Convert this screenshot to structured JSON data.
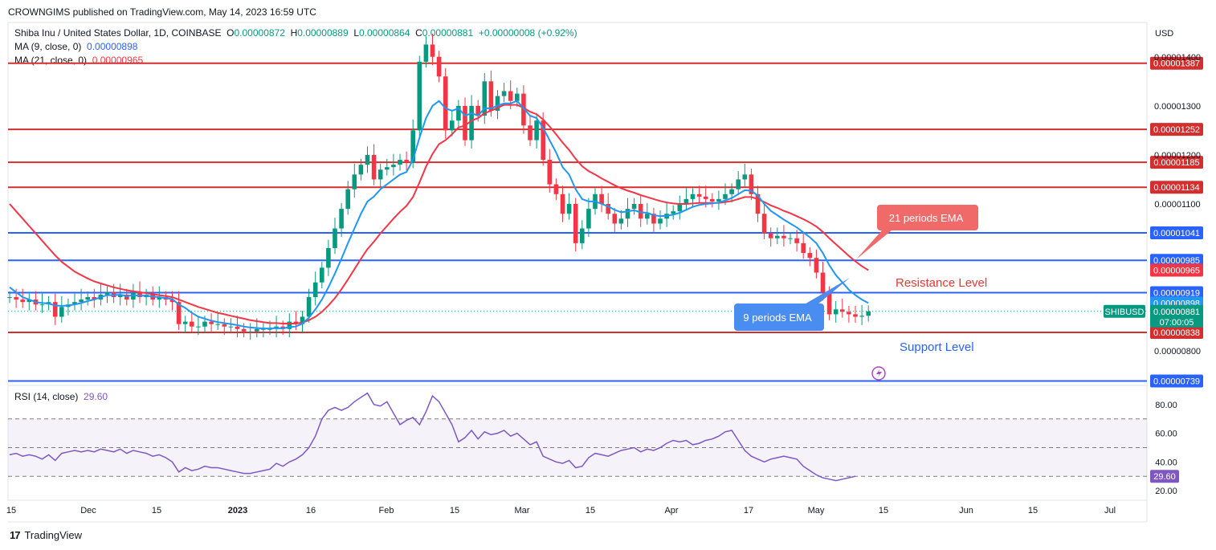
{
  "publisher": "CROWNGIMS published on TradingView.com, May 14, 2023 16:59 UTC",
  "symbol_line": {
    "name": "Shiba Inu / United States Dollar, 1D, COINBASE",
    "o_label": "O",
    "o": "0.00000872",
    "h_label": "H",
    "h": "0.00000889",
    "l_label": "L",
    "l": "0.00000864",
    "c_label": "C",
    "c": "0.00000881",
    "change": "+0.00000008 (+0.92%)"
  },
  "ma9": {
    "label": "MA (9, close, 0)",
    "value": "0.00000898",
    "color": "#2196f3"
  },
  "ma21": {
    "label": "MA (21, close, 0)",
    "value": "0.00000965",
    "color": "#f23645"
  },
  "rsi_legend": {
    "label": "RSI (14, close)",
    "value": "29.60",
    "color": "#7e57c2"
  },
  "currency": "USD",
  "footer_brand": "TradingView",
  "colors": {
    "up": "#089981",
    "down": "#f23645",
    "support_resistance_blue": "#2962ff",
    "level_red": "#d32f2f"
  },
  "chart_data": {
    "type": "candlestick",
    "price_axis": {
      "ticks": [
        "0.00001400",
        "0.00001300",
        "0.00001200",
        "0.00001100",
        "0.00000800"
      ],
      "ylim": [
        7.3e-06,
        1.47e-05
      ]
    },
    "x_tick_labels": [
      "15",
      "Dec",
      "15",
      "2023",
      "16",
      "Feb",
      "15",
      "Mar",
      "15",
      "Apr",
      "17",
      "May",
      "15",
      "Jun",
      "15",
      "Jul"
    ],
    "horizontal_levels": [
      {
        "value": 1.387e-05,
        "label": "0.00001387",
        "color": "#d32f2f"
      },
      {
        "value": 1.252e-05,
        "label": "0.00001252",
        "color": "#d32f2f"
      },
      {
        "value": 1.185e-05,
        "label": "0.00001185",
        "color": "#d32f2f"
      },
      {
        "value": 1.134e-05,
        "label": "0.00001134",
        "color": "#d32f2f"
      },
      {
        "value": 1.041e-05,
        "label": "0.00001041",
        "color": "#2962ff"
      },
      {
        "value": 9.85e-06,
        "label": "0.00000985",
        "color": "#2962ff"
      },
      {
        "value": 9.19e-06,
        "label": "0.00000919",
        "color": "#2962ff"
      },
      {
        "value": 8.38e-06,
        "label": "0.00000838",
        "color": "#d32f2f"
      },
      {
        "value": 7.39e-06,
        "label": "0.00000739",
        "color": "#2962ff"
      }
    ],
    "price_badges": [
      {
        "value": 9.65e-06,
        "label": "0.00000965",
        "color": "#f23645"
      },
      {
        "value": 8.98e-06,
        "label": "0.00000898",
        "color": "#2196f3"
      },
      {
        "value": 8.81e-06,
        "label": "0.00000881",
        "color": "#089981",
        "sub": "07:00:05"
      }
    ],
    "symbol_badge": "SHIBUSD",
    "annotations": {
      "ema21_callout": "21 periods EMA",
      "ema9_callout": "9 periods EMA",
      "resistance": "Resistance Level",
      "support": "Support Level"
    },
    "close_series": [
      9.1,
      9.05,
      9.0,
      9.05,
      8.95,
      8.95,
      9.0,
      8.7,
      8.9,
      8.95,
      9.0,
      9.05,
      9.1,
      9.05,
      9.15,
      9.2,
      9.1,
      9.15,
      9.05,
      9.2,
      9.1,
      9.15,
      9.05,
      9.1,
      9.05,
      9.0,
      8.55,
      8.6,
      8.5,
      8.5,
      8.6,
      8.55,
      8.55,
      8.5,
      8.5,
      8.45,
      8.4,
      8.4,
      8.45,
      8.45,
      8.45,
      8.5,
      8.45,
      8.6,
      8.55,
      8.7,
      9.1,
      9.4,
      9.7,
      10.1,
      10.5,
      10.9,
      11.3,
      11.6,
      11.8,
      12.0,
      11.5,
      11.7,
      11.75,
      11.8,
      11.9,
      11.85,
      12.5,
      13.9,
      14.25,
      14.0,
      13.6,
      12.5,
      12.7,
      13.0,
      12.3,
      13.0,
      12.8,
      13.5,
      12.9,
      13.2,
      13.3,
      13.1,
      13.25,
      12.6,
      12.3,
      12.7,
      11.9,
      11.4,
      11.2,
      10.8,
      11.0,
      10.2,
      10.5,
      10.9,
      11.2,
      11.0,
      10.8,
      10.6,
      10.7,
      10.9,
      11.0,
      10.7,
      10.8,
      10.6,
      10.7,
      10.8,
      10.85,
      11.0,
      11.1,
      11.2,
      11.15,
      11.1,
      11.05,
      11.1,
      11.2,
      11.3,
      11.5,
      11.6,
      11.2,
      10.8,
      10.4,
      10.3,
      10.35,
      10.3,
      10.3,
      10.2,
      10.0,
      9.9,
      9.6,
      9.2,
      8.75,
      8.85,
      8.8,
      8.75,
      8.7,
      8.72,
      8.81
    ],
    "ema9_series": [
      9.3,
      9.2,
      9.1,
      9.05,
      9.0,
      8.98,
      8.97,
      8.93,
      8.92,
      8.93,
      8.95,
      8.98,
      9.02,
      9.05,
      9.1,
      9.14,
      9.14,
      9.15,
      9.12,
      9.14,
      9.13,
      9.13,
      9.11,
      9.1,
      9.08,
      9.06,
      8.95,
      8.88,
      8.78,
      8.7,
      8.66,
      8.62,
      8.59,
      8.57,
      8.55,
      8.53,
      8.5,
      8.48,
      8.47,
      8.46,
      8.46,
      8.47,
      8.46,
      8.49,
      8.5,
      8.56,
      8.68,
      8.85,
      9.05,
      9.3,
      9.58,
      9.88,
      10.2,
      10.5,
      10.8,
      11.05,
      11.15,
      11.3,
      11.4,
      11.5,
      11.6,
      11.65,
      11.9,
      12.35,
      12.75,
      13.0,
      13.1,
      12.95,
      12.9,
      12.95,
      12.8,
      12.85,
      12.8,
      12.95,
      12.95,
      13.0,
      13.05,
      13.05,
      13.1,
      12.95,
      12.8,
      12.75,
      12.55,
      12.3,
      12.05,
      11.75,
      11.6,
      11.3,
      11.1,
      11.05,
      11.05,
      11.0,
      10.95,
      10.88,
      10.83,
      10.85,
      10.87,
      10.83,
      10.82,
      10.77,
      10.75,
      10.76,
      10.78,
      10.82,
      10.88,
      10.94,
      10.98,
      11.0,
      11.01,
      11.03,
      11.07,
      11.12,
      11.2,
      11.28,
      11.27,
      11.17,
      11.0,
      10.86,
      10.77,
      10.68,
      10.6,
      10.52,
      10.42,
      10.32,
      10.2,
      10.0,
      9.75,
      9.55,
      9.4,
      9.25,
      9.14,
      9.05,
      8.98
    ],
    "ema21_series": [
      11.0,
      10.85,
      10.7,
      10.55,
      10.4,
      10.25,
      10.1,
      9.95,
      9.82,
      9.72,
      9.62,
      9.55,
      9.48,
      9.42,
      9.38,
      9.34,
      9.3,
      9.27,
      9.24,
      9.22,
      9.2,
      9.18,
      9.16,
      9.14,
      9.12,
      9.1,
      9.05,
      9.0,
      8.95,
      8.9,
      8.86,
      8.82,
      8.78,
      8.75,
      8.72,
      8.69,
      8.66,
      8.63,
      8.61,
      8.59,
      8.57,
      8.57,
      8.56,
      8.56,
      8.56,
      8.58,
      8.63,
      8.7,
      8.8,
      8.93,
      9.08,
      9.26,
      9.46,
      9.67,
      9.88,
      10.08,
      10.23,
      10.4,
      10.55,
      10.7,
      10.84,
      10.96,
      11.14,
      11.44,
      11.76,
      12.02,
      12.22,
      12.3,
      12.42,
      12.56,
      12.6,
      12.7,
      12.75,
      12.85,
      12.9,
      12.96,
      13.02,
      13.02,
      13.02,
      12.96,
      12.88,
      12.83,
      12.72,
      12.58,
      12.42,
      12.25,
      12.1,
      11.92,
      11.77,
      11.67,
      11.6,
      11.52,
      11.45,
      11.38,
      11.32,
      11.27,
      11.23,
      11.18,
      11.14,
      11.1,
      11.06,
      11.03,
      11.01,
      11.0,
      11.0,
      11.01,
      11.02,
      11.02,
      11.02,
      11.02,
      11.04,
      11.06,
      11.1,
      11.14,
      11.14,
      11.1,
      11.04,
      10.97,
      10.92,
      10.86,
      10.81,
      10.75,
      10.69,
      10.62,
      10.54,
      10.43,
      10.3,
      10.18,
      10.06,
      9.94,
      9.83,
      9.73,
      9.65
    ],
    "rsi": {
      "ticks": [
        "80.00",
        "60.00",
        "40.00",
        "20.00"
      ],
      "ylim": [
        15,
        90
      ],
      "levels": [
        70,
        50,
        30
      ],
      "series": [
        45,
        46,
        44,
        45,
        44,
        42,
        45,
        41,
        46,
        47,
        48,
        47,
        48,
        47,
        49,
        48,
        47,
        49,
        46,
        48,
        47,
        46,
        44,
        45,
        43,
        40,
        33,
        36,
        34,
        35,
        37,
        36,
        36,
        35,
        34,
        33,
        32,
        32,
        33,
        34,
        35,
        39,
        37,
        40,
        42,
        45,
        50,
        58,
        70,
        76,
        78,
        76,
        78,
        82,
        85,
        88,
        80,
        79,
        82,
        74,
        66,
        69,
        71,
        66,
        75,
        86,
        82,
        74,
        66,
        54,
        57,
        62,
        56,
        61,
        59,
        60,
        62,
        58,
        60,
        56,
        52,
        54,
        44,
        42,
        40,
        39,
        41,
        36,
        37,
        43,
        46,
        45,
        44,
        46,
        48,
        49,
        50,
        47,
        49,
        48,
        50,
        53,
        55,
        54,
        55,
        52,
        53,
        55,
        56,
        58,
        61,
        62,
        55,
        48,
        44,
        42,
        40,
        42,
        43,
        44,
        43,
        42,
        37,
        34,
        31,
        29,
        28,
        27,
        28,
        29,
        30
      ]
    }
  }
}
